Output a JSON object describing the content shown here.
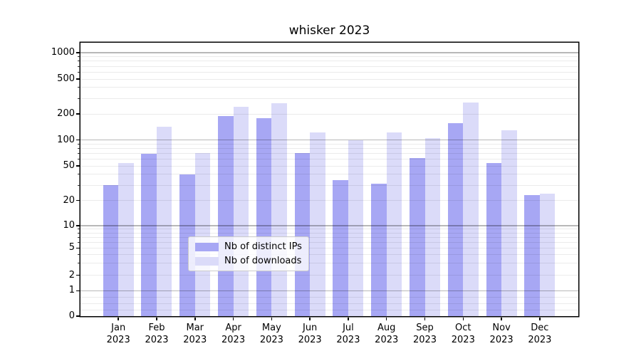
{
  "title": "whisker 2023",
  "legend": {
    "items": [
      {
        "label": "Nb of distinct IPs",
        "color": "#a7a7f4"
      },
      {
        "label": "Nb of downloads",
        "color": "#dbdbf9"
      }
    ]
  },
  "y_axis": {
    "tick_values": [
      0,
      1,
      2,
      5,
      10,
      20,
      50,
      100,
      200,
      500,
      1000
    ]
  },
  "x_axis": {
    "months": [
      "Jan",
      "Feb",
      "Mar",
      "Apr",
      "May",
      "Jun",
      "Jul",
      "Aug",
      "Sep",
      "Oct",
      "Nov",
      "Dec"
    ],
    "year_line": "2023"
  },
  "chart_data": {
    "type": "bar",
    "title": "whisker 2023",
    "categories": [
      "Jan 2023",
      "Feb 2023",
      "Mar 2023",
      "Apr 2023",
      "May 2023",
      "Jun 2023",
      "Jul 2023",
      "Aug 2023",
      "Sep 2023",
      "Oct 2023",
      "Nov 2023",
      "Dec 2023"
    ],
    "series": [
      {
        "name": "Nb of distinct IPs",
        "color": "#a7a7f4",
        "values": [
          30,
          69,
          40,
          189,
          180,
          70,
          34,
          31,
          62,
          155,
          54,
          23
        ]
      },
      {
        "name": "Nb of downloads",
        "color": "#dbdbf9",
        "values": [
          54,
          141,
          70,
          241,
          265,
          122,
          100,
          123,
          105,
          268,
          129,
          24
        ]
      }
    ],
    "xlabel": "",
    "ylabel": "",
    "yscale": "symlog (linear 0-1, log 1-1000)",
    "y_ticks": [
      0,
      1,
      2,
      5,
      10,
      20,
      50,
      100,
      200,
      500,
      1000
    ],
    "ylim": [
      0,
      1300
    ],
    "grid": true,
    "legend_position": "lower center inside plot"
  }
}
